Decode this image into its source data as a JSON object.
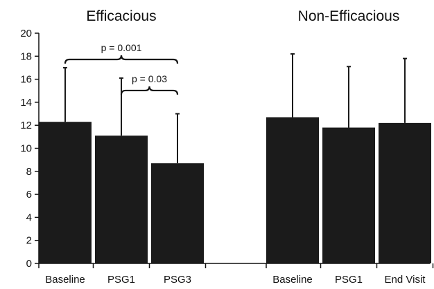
{
  "chart_data": {
    "type": "bar",
    "ylim": [
      0,
      20
    ],
    "yticks": [
      "0",
      "2",
      "4",
      "6",
      "8",
      "10",
      "12",
      "14",
      "16",
      "18",
      "20"
    ],
    "grid": false,
    "colors": {
      "bar": "#1b1b1b",
      "axis": "#111111"
    },
    "groups": [
      {
        "title": "Efficacious",
        "categories": [
          "Baseline",
          "PSG1",
          "PSG3"
        ],
        "values": [
          12.3,
          11.1,
          8.7
        ],
        "error_upper": [
          17.0,
          16.1,
          13.0
        ]
      },
      {
        "title": "Non-Efficacious",
        "categories": [
          "Baseline",
          "PSG1",
          "End Visit"
        ],
        "values": [
          12.7,
          11.8,
          12.2
        ],
        "error_upper": [
          18.2,
          17.1,
          17.8
        ]
      }
    ],
    "annotations": [
      {
        "text": "p = 0.001",
        "from": [
          "Efficacious",
          "Baseline"
        ],
        "to": [
          "Efficacious",
          "PSG3"
        ],
        "y": 18.2
      },
      {
        "text": "p = 0.03",
        "from": [
          "Efficacious",
          "PSG1"
        ],
        "to": [
          "Efficacious",
          "PSG3"
        ],
        "y": 15.5
      }
    ]
  }
}
